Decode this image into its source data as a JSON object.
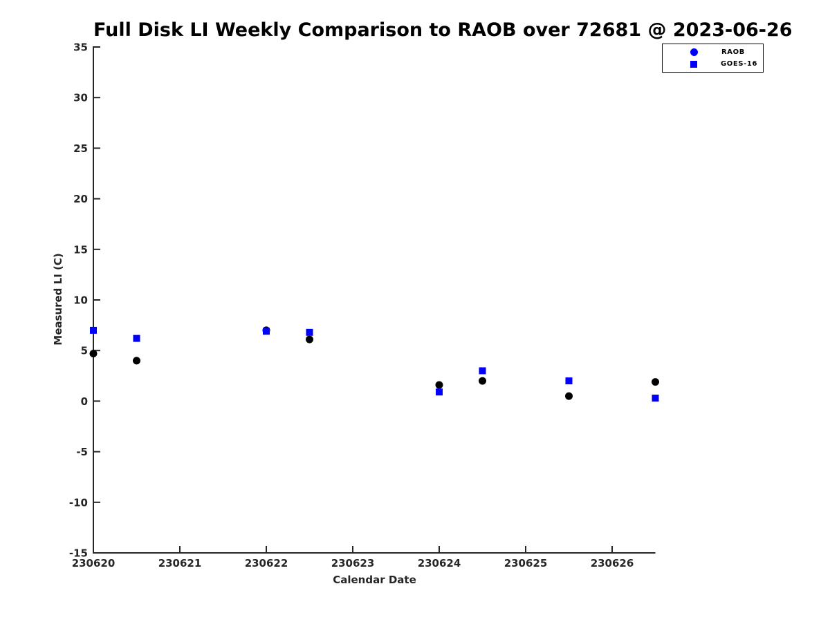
{
  "colors": {
    "marker_blue": "#0000ff",
    "marker_black": "#000000",
    "axis": "#262626",
    "background": "#ffffff"
  },
  "legend": {
    "items": [
      {
        "label": "RAOB",
        "marker": "circle-icon",
        "color": "#0000ff"
      },
      {
        "label": "GOES-16",
        "marker": "square-icon",
        "color": "#0000ff"
      }
    ]
  },
  "chart_data": {
    "type": "scatter",
    "title": "Full Disk LI Weekly Comparison to RAOB over 72681 @ 2023-06-26",
    "xlabel": "Calendar Date",
    "ylabel": "Measured LI (C)",
    "xlim": [
      230620,
      230626.5
    ],
    "ylim": [
      -15,
      35
    ],
    "x_ticks": [
      230620,
      230621,
      230622,
      230623,
      230624,
      230625,
      230626
    ],
    "y_ticks": [
      35,
      30,
      25,
      20,
      15,
      10,
      5,
      0,
      -5,
      -10,
      -15
    ],
    "grid": false,
    "legend_position": "top-right",
    "x": [
      230620,
      230620.5,
      230622,
      230622.5,
      230624,
      230624.5,
      230625.5,
      230626.5
    ],
    "series": [
      {
        "name": "RAOB",
        "marker": "circle",
        "color": "#000000",
        "values": [
          4.7,
          4.0,
          7.0,
          6.1,
          1.6,
          2.0,
          0.5,
          1.9
        ]
      },
      {
        "name": "GOES-16",
        "marker": "square",
        "color": "#0000ff",
        "values": [
          7.0,
          6.2,
          6.9,
          6.8,
          0.9,
          3.0,
          2.0,
          0.3
        ]
      }
    ]
  }
}
